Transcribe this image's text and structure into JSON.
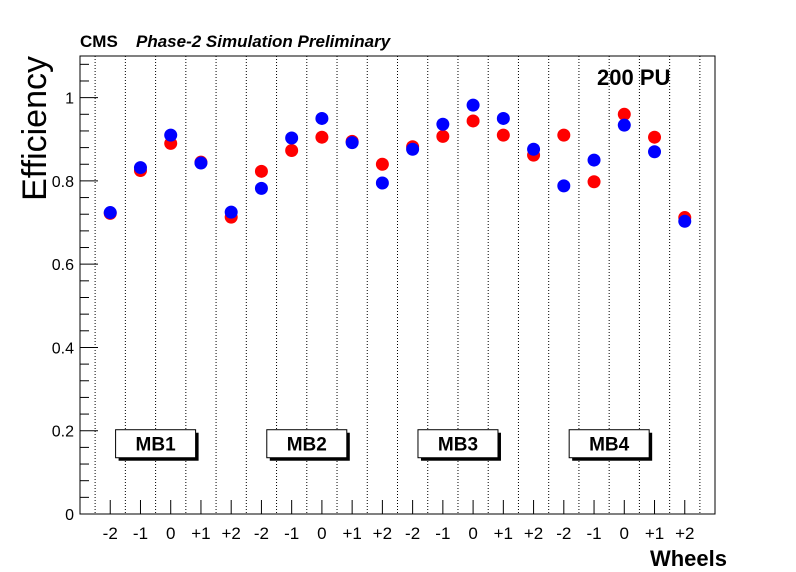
{
  "header": {
    "experiment": "CMS",
    "status": "Phase-2 Simulation Preliminary"
  },
  "annotation": "200 PU",
  "chart_data": {
    "type": "scatter",
    "ylabel": "Efficiency",
    "xlabel": "Wheels",
    "ylim": [
      0,
      1.1
    ],
    "yticks": [
      0,
      0.2,
      0.4,
      0.6,
      0.8,
      1
    ],
    "ytick_labels": [
      "0",
      "0.2",
      "0.4",
      "0.6",
      "0.8",
      "1"
    ],
    "grid": "vertical dotted lines between wheels",
    "categories": [
      "-2",
      "-1",
      "0",
      "+1",
      "+2",
      "-2",
      "-1",
      "0",
      "+1",
      "+2",
      "-2",
      "-1",
      "0",
      "+1",
      "+2",
      "-2",
      "-1",
      "0",
      "+1",
      "+2"
    ],
    "groups": [
      {
        "label": "MB1"
      },
      {
        "label": "MB2"
      },
      {
        "label": "MB3"
      },
      {
        "label": "MB4"
      }
    ],
    "series": [
      {
        "color": "#ff0000",
        "values": [
          0.722,
          0.825,
          0.89,
          0.845,
          0.713,
          0.823,
          0.873,
          0.905,
          0.895,
          0.84,
          0.882,
          0.907,
          0.944,
          0.91,
          0.862,
          0.91,
          0.798,
          0.96,
          0.905,
          0.712
        ]
      },
      {
        "color": "#0000ff",
        "values": [
          0.724,
          0.832,
          0.91,
          0.843,
          0.725,
          0.782,
          0.903,
          0.95,
          0.892,
          0.795,
          0.876,
          0.936,
          0.982,
          0.95,
          0.876,
          0.788,
          0.85,
          0.934,
          0.87,
          0.703
        ]
      }
    ]
  }
}
